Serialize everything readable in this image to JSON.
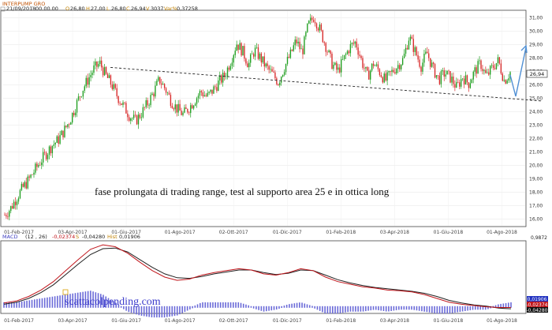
{
  "header": {
    "title": "INTERPUMP GRO",
    "date": "21/09/2018",
    "time": "00.00.00",
    "open_label": "O",
    "open": "26,80",
    "high_label": "H",
    "high": "27,00",
    "low_label": "L",
    "low": "26,80",
    "close_label": "C",
    "close": "26,94",
    "volume_label": "V",
    "volume": "3037",
    "var_label": "Var%",
    "var": "0,37258"
  },
  "annotation": "fase prolungata di trading range, test al supporto area 25 e in ottica long",
  "watermark": "scattacolpending.com",
  "last_price_badge": "26,94",
  "macd_header": {
    "label": "MACD",
    "params": "(12 , 26)",
    "macd_label": "MACD",
    "macd_value": "-0,02374",
    "signal_label": "S",
    "signal_value": "-0,04280",
    "hist_label": "Hist",
    "hist_value": "0,01906"
  },
  "macd_badges": [
    "0,01906",
    "-0,02374",
    "-0,04280"
  ],
  "macd_top_label": "0,9872",
  "colors": {
    "up": "#1f9e1f",
    "down": "#d82a2a",
    "macd_line": "#c0151b",
    "signal_line": "#202020",
    "histogram": "#6a6ad8",
    "arrow": "#4f8fd4",
    "header_title": "#c05000",
    "watermark": "#3a3acb"
  },
  "chart_data": [
    {
      "type": "candlestick",
      "title": "INTERPUMP GRO",
      "x": [
        "01-Feb-2017",
        "03-Apr-2017",
        "01-Giu-2017",
        "01-Ago-2017",
        "02-Ott-2017",
        "01-Dic-2017",
        "01-Feb-2018",
        "03-Apr-2018",
        "01-Giu-2018",
        "01-Ago-2018"
      ],
      "ylim": [
        15.5,
        31.5
      ],
      "y_ticks": [
        "31,00",
        "30,00",
        "29,00",
        "28,00",
        "27,00",
        "26,00",
        "25,00",
        "24,00",
        "23,00",
        "22,00",
        "21,00",
        "20,00",
        "19,00",
        "18,00",
        "17,00",
        "16,00"
      ],
      "close_path": [
        16.3,
        16.8,
        17.6,
        18.3,
        18.9,
        19.6,
        20.3,
        20.9,
        21.5,
        21.9,
        22.6,
        23.4,
        24.5,
        25.6,
        26.4,
        27.2,
        27.6,
        26.7,
        26.0,
        25.1,
        24.4,
        23.7,
        23.3,
        23.9,
        24.6,
        25.4,
        26.4,
        25.7,
        24.8,
        24.2,
        23.8,
        24.3,
        24.9,
        25.5,
        25.1,
        25.6,
        26.2,
        26.7,
        27.8,
        29.1,
        28.5,
        27.5,
        28.6,
        28.0,
        27.3,
        26.8,
        26.2,
        27.3,
        28.2,
        29.3,
        28.4,
        30.4,
        31.1,
        30.1,
        28.9,
        27.6,
        27.0,
        27.9,
        28.8,
        29.2,
        27.8,
        26.6,
        27.6,
        27.0,
        26.3,
        26.9,
        27.4,
        27.9,
        29.6,
        28.5,
        27.4,
        28.4,
        27.2,
        26.4,
        26.9,
        26.5,
        25.8,
        26.6,
        26.1,
        27.0,
        27.6,
        26.6,
        27.3,
        27.8,
        26.3,
        26.94
      ],
      "support_line": {
        "from": [
          "01-Giu-2017",
          27.3
        ],
        "to": [
          "01-Ago-2018",
          24.8
        ]
      },
      "last_close": 26.94
    },
    {
      "type": "line",
      "title": "MACD",
      "series": [
        {
          "name": "MACD",
          "values": [
            0.05,
            0.08,
            0.15,
            0.25,
            0.38,
            0.55,
            0.72,
            0.88,
            0.95,
            0.92,
            0.82,
            0.68,
            0.55,
            0.45,
            0.4,
            0.42,
            0.48,
            0.52,
            0.55,
            0.58,
            0.56,
            0.5,
            0.48,
            0.52,
            0.58,
            0.55,
            0.45,
            0.38,
            0.34,
            0.3,
            0.28,
            0.25,
            0.24,
            0.22,
            0.18,
            0.12,
            0.06,
            0.03,
            0.01,
            -0.01,
            -0.02,
            -0.02
          ]
        },
        {
          "name": "S",
          "values": [
            0.03,
            0.06,
            0.12,
            0.21,
            0.33,
            0.49,
            0.65,
            0.8,
            0.89,
            0.9,
            0.84,
            0.72,
            0.6,
            0.5,
            0.44,
            0.43,
            0.46,
            0.5,
            0.53,
            0.56,
            0.56,
            0.52,
            0.49,
            0.51,
            0.56,
            0.55,
            0.48,
            0.41,
            0.36,
            0.32,
            0.29,
            0.27,
            0.25,
            0.23,
            0.2,
            0.15,
            0.09,
            0.05,
            0.02,
            0.0,
            -0.03,
            -0.04
          ]
        }
      ],
      "histogram": {
        "name": "Hist",
        "last": 0.01906
      },
      "last_values": {
        "MACD": -0.02374,
        "S": -0.0428,
        "Hist": 0.01906
      }
    }
  ]
}
